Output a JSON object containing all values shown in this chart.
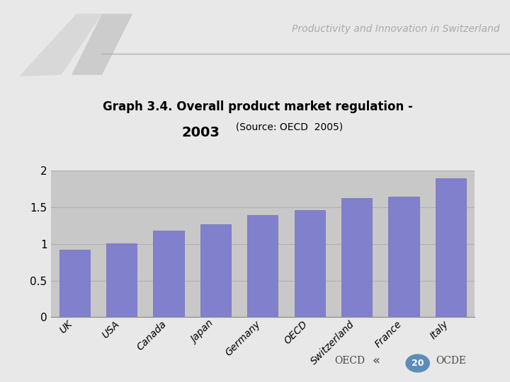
{
  "categories": [
    "UK",
    "USA",
    "Canada",
    "Japan",
    "Germany",
    "OECD",
    "Switzerland",
    "France",
    "Italy"
  ],
  "values": [
    0.92,
    1.01,
    1.18,
    1.27,
    1.4,
    1.46,
    1.63,
    1.65,
    1.9
  ],
  "bar_color": "#8080cc",
  "bar_edge_color": "#7070bb",
  "title_line1": "Graph 3.4. Overall product market regulation -",
  "title_line2_bold": "2003",
  "title_line2_source": "  (Source: OECD  2005)",
  "ylim": [
    0,
    2.0
  ],
  "yticks": [
    0,
    0.5,
    1,
    1.5,
    2
  ],
  "ytick_labels": [
    "0",
    "0.5",
    "1",
    "1.5",
    "2"
  ],
  "plot_bg_color": "#c8c8c8",
  "outer_bg_color": "#e8e8e8",
  "white_box_color": "#ffffff",
  "header_text": "Productivity and Innovation in Switzerland",
  "header_color": "#aaaaaa",
  "tri1_color": "#d8d8d8",
  "tri2_color": "#cccccc",
  "oecd_text_color": "#444444",
  "page_num": "20",
  "page_circle_color": "#5b8db8",
  "grid_color": "#b0b0b0",
  "hline_color": "#b0b0b0"
}
